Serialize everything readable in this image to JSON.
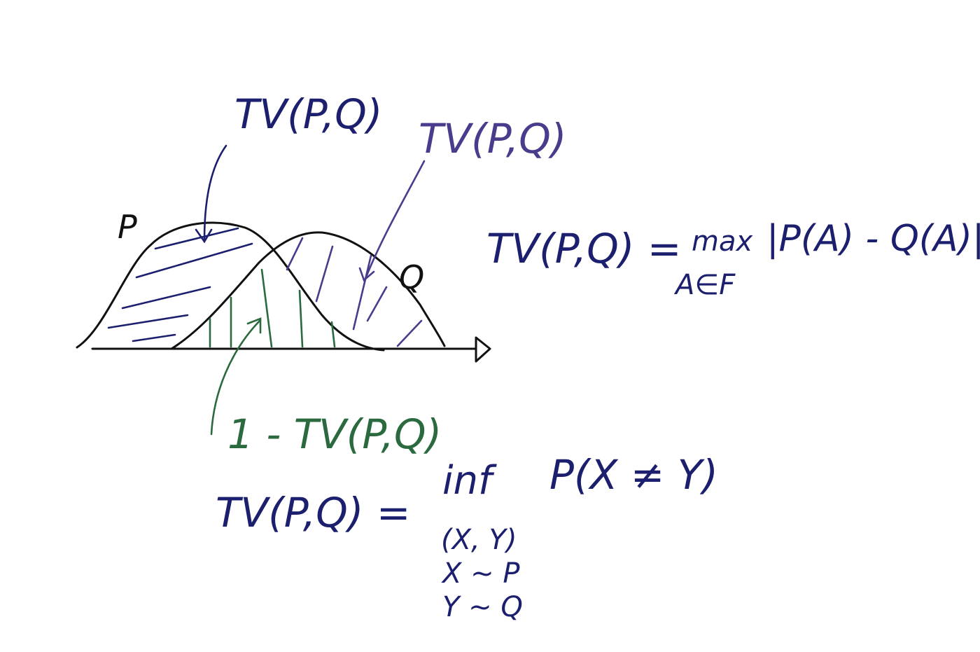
{
  "labels": {
    "p": "P",
    "q": "Q",
    "tv_left": "TV(P,Q)",
    "tv_right": "TV(P,Q)",
    "one_minus_tv": "1 - TV(P,Q)"
  },
  "formula1": {
    "lhs": "TV(P,Q) =",
    "op": "max",
    "sub": "A∈F",
    "rhs": "|P(A) - Q(A)|"
  },
  "formula2": {
    "lhs": "TV(P,Q) =",
    "op": "inf",
    "rhs": "P(X ≠ Y)",
    "sub1": "(X, Y)",
    "sub2": "X ~ P",
    "sub3": "Y ~ Q"
  },
  "colors": {
    "navy": "#1b1f6e",
    "purple": "#4a3b8c",
    "green": "#2a6a3e",
    "ink": "#111111"
  }
}
